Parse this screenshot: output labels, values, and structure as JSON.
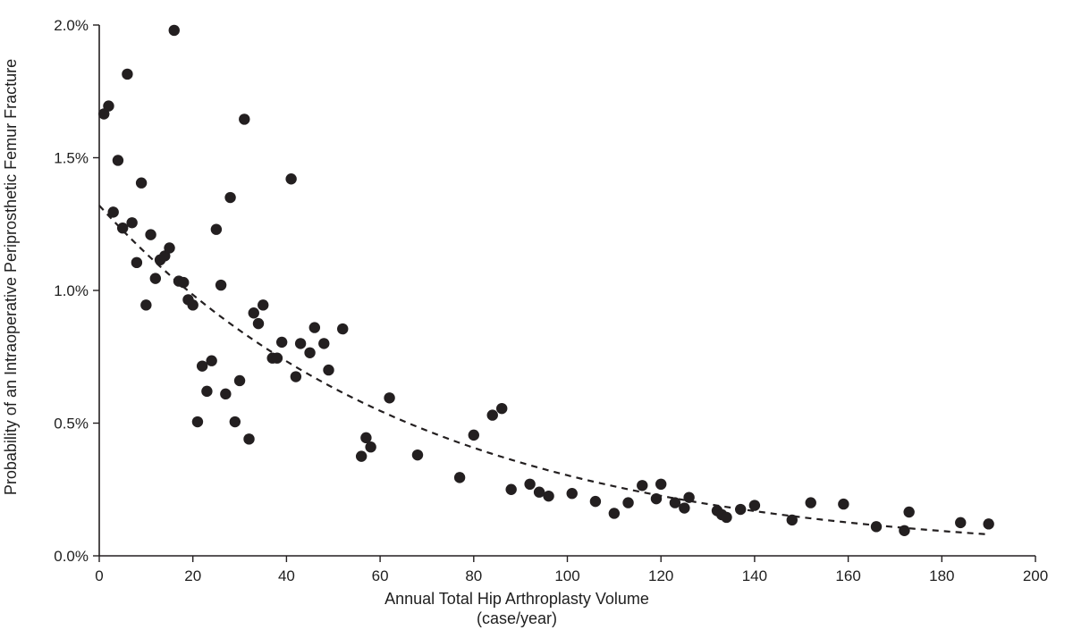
{
  "chart_data": {
    "type": "scatter",
    "xlabel": "Annual Total Hip Arthroplasty Volume",
    "xlabel_unit": "(case/year)",
    "ylabel": "Probability of an Intraoperative Periprosthetic Femur Fracture",
    "xlim": [
      0,
      200
    ],
    "ylim": [
      0,
      0.02
    ],
    "x_ticks": [
      0,
      20,
      40,
      60,
      80,
      100,
      120,
      140,
      160,
      180,
      200
    ],
    "y_ticks": [
      0,
      0.005,
      0.01,
      0.015,
      0.02
    ],
    "y_tick_labels": [
      "0.0%",
      "0.5%",
      "1.0%",
      "1.5%",
      "2.0%"
    ],
    "grid": false,
    "marker_color": "#231f20",
    "points": [
      [
        1,
        0.01665
      ],
      [
        2,
        0.01695
      ],
      [
        3,
        0.01295
      ],
      [
        4,
        0.0149
      ],
      [
        5,
        0.01235
      ],
      [
        6,
        0.01815
      ],
      [
        7,
        0.01255
      ],
      [
        8,
        0.01105
      ],
      [
        9,
        0.01405
      ],
      [
        10,
        0.00945
      ],
      [
        11,
        0.0121
      ],
      [
        12,
        0.01045
      ],
      [
        13,
        0.01115
      ],
      [
        14,
        0.0113
      ],
      [
        15,
        0.0116
      ],
      [
        16,
        0.0198
      ],
      [
        17,
        0.01035
      ],
      [
        18,
        0.0103
      ],
      [
        19,
        0.00965
      ],
      [
        20,
        0.00945
      ],
      [
        21,
        0.00505
      ],
      [
        22,
        0.00715
      ],
      [
        23,
        0.0062
      ],
      [
        24,
        0.00735
      ],
      [
        25,
        0.0123
      ],
      [
        26,
        0.0102
      ],
      [
        27,
        0.0061
      ],
      [
        28,
        0.0135
      ],
      [
        29,
        0.00505
      ],
      [
        30,
        0.0066
      ],
      [
        31,
        0.01645
      ],
      [
        32,
        0.0044
      ],
      [
        33,
        0.00915
      ],
      [
        34,
        0.00875
      ],
      [
        35,
        0.00945
      ],
      [
        37,
        0.00745
      ],
      [
        38,
        0.00745
      ],
      [
        39,
        0.00805
      ],
      [
        41,
        0.0142
      ],
      [
        42,
        0.00675
      ],
      [
        43,
        0.008
      ],
      [
        45,
        0.00765
      ],
      [
        46,
        0.0086
      ],
      [
        48,
        0.008
      ],
      [
        49,
        0.007
      ],
      [
        52,
        0.00855
      ],
      [
        56,
        0.00375
      ],
      [
        57,
        0.00445
      ],
      [
        58,
        0.0041
      ],
      [
        62,
        0.00595
      ],
      [
        68,
        0.0038
      ],
      [
        77,
        0.00295
      ],
      [
        80,
        0.00455
      ],
      [
        84,
        0.0053
      ],
      [
        86,
        0.00555
      ],
      [
        88,
        0.0025
      ],
      [
        92,
        0.0027
      ],
      [
        94,
        0.0024
      ],
      [
        96,
        0.00225
      ],
      [
        101,
        0.00235
      ],
      [
        106,
        0.00205
      ],
      [
        110,
        0.0016
      ],
      [
        113,
        0.002
      ],
      [
        116,
        0.00265
      ],
      [
        119,
        0.00215
      ],
      [
        120,
        0.0027
      ],
      [
        123,
        0.002
      ],
      [
        125,
        0.0018
      ],
      [
        126,
        0.0022
      ],
      [
        132,
        0.0017
      ],
      [
        133,
        0.00155
      ],
      [
        134,
        0.00145
      ],
      [
        137,
        0.00175
      ],
      [
        140,
        0.0019
      ],
      [
        148,
        0.00135
      ],
      [
        152,
        0.002
      ],
      [
        159,
        0.00195
      ],
      [
        166,
        0.0011
      ],
      [
        172,
        0.00095
      ],
      [
        173,
        0.00165
      ],
      [
        184,
        0.00125
      ],
      [
        190,
        0.0012
      ]
    ],
    "trendline": {
      "style": "dashed",
      "color": "#231f20",
      "model": "exponential",
      "a": 0.0132,
      "b": -0.0147,
      "x_range": [
        0,
        190
      ]
    }
  }
}
